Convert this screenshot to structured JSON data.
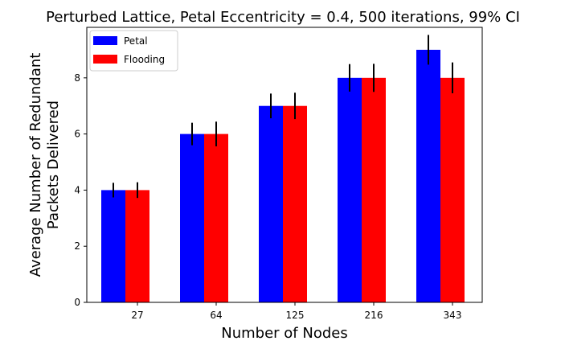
{
  "chart_data": {
    "type": "bar",
    "title": "Perturbed Lattice, Petal Eccentricity = 0.4, 500 iterations, 99% CI",
    "xlabel": "Number of Nodes",
    "ylabel_lines": [
      "Average Number of Redundant",
      "Packets Delivered"
    ],
    "categories": [
      "27",
      "64",
      "125",
      "216",
      "343"
    ],
    "ylim": [
      0,
      9.8
    ],
    "yticks": [
      0,
      2,
      4,
      6,
      8
    ],
    "grid": false,
    "legend_position": "top-left",
    "series": [
      {
        "name": "Petal",
        "color": "#0000ff",
        "values": [
          4,
          6,
          7,
          8,
          9
        ],
        "ci": [
          0.26,
          0.4,
          0.44,
          0.49,
          0.53
        ]
      },
      {
        "name": "Flooding",
        "color": "#ff0000",
        "values": [
          4,
          6,
          7,
          8,
          8
        ],
        "ci": [
          0.28,
          0.44,
          0.47,
          0.5,
          0.55
        ]
      }
    ]
  }
}
